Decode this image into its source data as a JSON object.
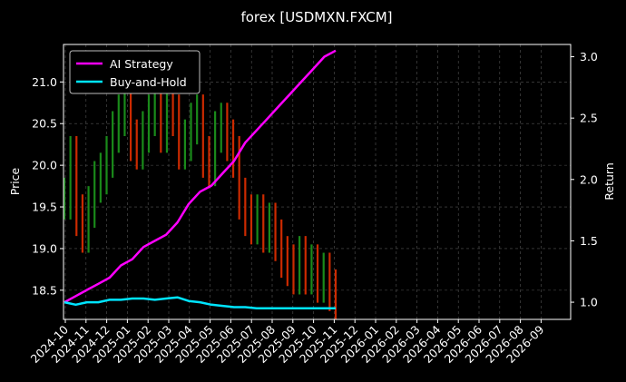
{
  "chart_data": {
    "type": "line",
    "title": "forex [USDMXN.FXCM]",
    "ylabel": "Price",
    "y2label": "Return",
    "grid": true,
    "legend_placement": "top-left",
    "x_ticks": [
      "2024-10",
      "2024-11",
      "2024-12",
      "2025-01",
      "2025-02",
      "2025-03",
      "2025-04",
      "2025-05",
      "2025-06",
      "2025-07",
      "2025-08",
      "2025-09",
      "2025-10",
      "2025-11",
      "2025-12",
      "2026-01",
      "2026-02",
      "2026-03",
      "2026-04",
      "2026-05",
      "2026-06",
      "2026-07",
      "2026-08",
      "2026-09"
    ],
    "y_ticks": [
      "18.5",
      "19.0",
      "19.5",
      "20.0",
      "20.5",
      "21.0"
    ],
    "y2_ticks": [
      "1.0",
      "1.5",
      "2.0",
      "2.5",
      "3.0"
    ],
    "ylim": [
      18.15,
      21.45
    ],
    "y2lim": [
      0.86,
      3.1
    ],
    "price_bars": {
      "name": "",
      "up_color": "#1a8a1a",
      "down_color": "#cc2a00",
      "values": [
        19.6,
        20.1,
        19.4,
        19.2,
        19.5,
        19.8,
        19.9,
        20.1,
        20.4,
        20.6,
        20.8,
        20.3,
        20.2,
        20.4,
        20.6,
        20.9,
        20.4,
        20.7,
        20.6,
        20.2,
        20.3,
        20.5,
        20.6,
        20.1,
        20.0,
        20.4,
        20.5,
        20.3,
        20.1,
        19.6,
        19.4,
        19.3,
        19.4,
        19.2,
        19.3,
        19.1,
        18.9,
        18.8,
        18.7,
        18.9,
        18.7,
        18.8,
        18.6,
        18.7,
        18.5,
        18.4
      ]
    },
    "series": [
      {
        "name": "AI Strategy",
        "color": "#ff00ff",
        "values": [
          1.0,
          1.05,
          1.1,
          1.15,
          1.2,
          1.3,
          1.35,
          1.45,
          1.5,
          1.55,
          1.65,
          1.8,
          1.9,
          1.95,
          2.05,
          2.15,
          2.3,
          2.4,
          2.5,
          2.6,
          2.7,
          2.8,
          2.9,
          3.0,
          3.05
        ]
      },
      {
        "name": "Buy-and-Hold",
        "color": "#00e5ff",
        "values": [
          1.0,
          0.98,
          1.0,
          1.0,
          1.02,
          1.02,
          1.03,
          1.03,
          1.02,
          1.03,
          1.04,
          1.01,
          1.0,
          0.98,
          0.97,
          0.96,
          0.96,
          0.95,
          0.95,
          0.95,
          0.95,
          0.95,
          0.95,
          0.95,
          0.95
        ]
      }
    ],
    "xlim_months": 24
  }
}
